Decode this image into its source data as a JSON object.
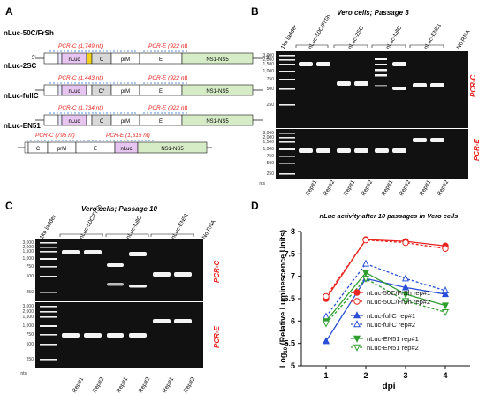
{
  "panelA": {
    "letter": "A",
    "constructs": [
      {
        "name": "nLuc-50C/FrSh",
        "pcrC": "PCR-C (1,749 nt)",
        "pcrE": "PCR-E (922 nt)",
        "end5": "5'",
        "end3": "3'"
      },
      {
        "name": "nLuc-2SC",
        "pcrC": "PCR-C (1,443 nt)",
        "pcrE": "PCR-E (922 nt)"
      },
      {
        "name": "nLuc-fullC",
        "pcrC": "PCR-C (1,734 nt)",
        "pcrE": "PCR-E (922 nt)"
      },
      {
        "name": "nLuc-EN51",
        "pcrC": "PCR-C (795 nt)",
        "pcrE": "PCR-E (1,615 nt)"
      }
    ],
    "genes": {
      "nluc": "nLuc",
      "c": "C",
      "cstar": "C*",
      "prm": "prM",
      "e": "E",
      "ns": "NS1-NS5"
    }
  },
  "panelB": {
    "letter": "B",
    "title": "Vero cells; Passage 3",
    "lanes": [
      "1kb ladder",
      "nLuc-50C/FrSh",
      "nLuc-2SC",
      "nLuc-fullC",
      "nLuc-EN51",
      "No RNA"
    ],
    "reps": [
      "Rep#1",
      "Rep#2",
      "Rep#1",
      "Rep#2",
      "Rep#1",
      "Rep#2",
      "Rep#1",
      "Rep#2"
    ],
    "ladder": [
      "3,000",
      "2,000",
      "1,500",
      "1,000",
      "750",
      "500",
      "250"
    ],
    "nts": "nts",
    "pcrC": "PCR-C",
    "pcrE": "PCR-E"
  },
  "panelC": {
    "letter": "C",
    "title": "Vero cells; Passage 10",
    "lanes": [
      "1kb ladder",
      "nLuc-50C/FrSh",
      "nLuc-fullC",
      "nLuc-EN51",
      "No RNA"
    ],
    "reps": [
      "Rep#1",
      "Rep#2",
      "Rep#1",
      "Rep#2",
      "Rep#1",
      "Rep#2"
    ],
    "ladder": [
      "3,000",
      "2,000",
      "1,500",
      "1,000",
      "750",
      "500",
      "250"
    ],
    "nts": "nts",
    "pcrC": "PCR-C",
    "pcrE": "PCR-E"
  },
  "panelD": {
    "letter": "D",
    "colors": {
      "red": "#e8251f",
      "blue": "#2a4fd6",
      "green": "#2f9e2f"
    }
  },
  "chart_data": {
    "type": "line",
    "title": "nLuc activity after 10 passages in Vero cells",
    "xlabel": "dpi",
    "ylabel": "Log10 (Relative Luminescence Units)",
    "ylabel_main": "Log",
    "ylabel_sub": "10",
    "ylabel_rest": " (Relative Luminescence Units)",
    "x": [
      1,
      2,
      3,
      4
    ],
    "xticks": [
      "1",
      "2",
      "3",
      "4"
    ],
    "yticks": [
      "5",
      "5.5",
      "6",
      "6.5",
      "7",
      "7.5",
      "8"
    ],
    "ylim": [
      5,
      8
    ],
    "legend_position": "bottom-right",
    "series": [
      {
        "name": "nLuc-50C/FrSh rep#1",
        "values": [
          6.5,
          7.82,
          7.78,
          7.68
        ],
        "color": "#e8251f",
        "dash": false,
        "marker": "circle",
        "filled": true
      },
      {
        "name": "nLuc-50C/FrSh rep#2",
        "values": [
          6.55,
          7.81,
          7.75,
          7.62
        ],
        "color": "#e8251f",
        "dash": true,
        "marker": "circle",
        "filled": false
      },
      {
        "name": "nLuc-fullC rep#1",
        "values": [
          5.55,
          6.95,
          6.75,
          6.6
        ],
        "color": "#2a4fd6",
        "dash": false,
        "marker": "triangle",
        "filled": true
      },
      {
        "name": "nLuc-fullC rep#2",
        "values": [
          6.1,
          7.28,
          6.95,
          6.68
        ],
        "color": "#2a4fd6",
        "dash": true,
        "marker": "triangle",
        "filled": false
      },
      {
        "name": "nLuc-EN51 rep#1",
        "values": [
          6.0,
          7.08,
          6.6,
          6.35
        ],
        "color": "#2f9e2f",
        "dash": false,
        "marker": "down",
        "filled": true
      },
      {
        "name": "nLuc-EN51 rep#2",
        "values": [
          5.95,
          6.95,
          6.45,
          6.2
        ],
        "color": "#2f9e2f",
        "dash": true,
        "marker": "down",
        "filled": false
      }
    ]
  }
}
